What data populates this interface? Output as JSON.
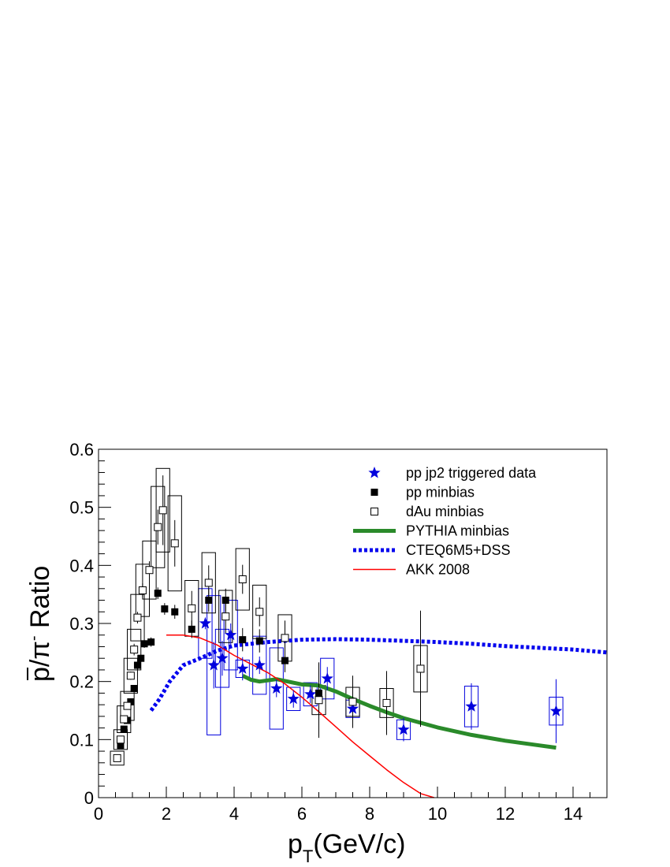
{
  "chart_data": {
    "type": "scatter",
    "xlabel": {
      "main": "p",
      "sub": "T",
      "rest": "(GeV/c)"
    },
    "ylabel": {
      "bar_char": "p",
      "slash": "/",
      "pi": "π",
      "sup": "-",
      "rest": " Ratio"
    },
    "xlim": [
      0,
      15
    ],
    "ylim": [
      0,
      0.6
    ],
    "x_ticks": [
      0,
      2,
      4,
      6,
      8,
      10,
      12,
      14
    ],
    "y_ticks": [
      0,
      0.1,
      0.2,
      0.3,
      0.4,
      0.5,
      0.6
    ],
    "x_tick_labels": [
      "0",
      "2",
      "4",
      "6",
      "8",
      "10",
      "12",
      "14"
    ],
    "y_tick_labels": [
      "0",
      "0.1",
      "0.2",
      "0.3",
      "0.4",
      "0.5",
      "0.6"
    ],
    "grid": false,
    "legend_position": "top-right",
    "legend": [
      {
        "label": "pp jp2 triggered data",
        "marker": "star",
        "color": "#0000dd"
      },
      {
        "label": "pp minbias",
        "marker": "filled-square",
        "color": "#000000"
      },
      {
        "label": "dAu minbias",
        "marker": "open-square",
        "color": "#000000"
      },
      {
        "label": "PYTHIA minbias",
        "line": "solid-thick",
        "color": "#2a8a2a"
      },
      {
        "label": "CTEQ6M5+DSS",
        "line": "dotted-thick",
        "color": "#0000ee"
      },
      {
        "label": "AKK 2008",
        "line": "solid-thin",
        "color": "#ff0000"
      }
    ],
    "series": [
      {
        "name": "pp jp2 triggered data",
        "marker": "star",
        "color": "#0000dd",
        "points": [
          {
            "x": 3.15,
            "y": 0.3,
            "err": 0.01,
            "sys": 0.06,
            "half_w": 0.2
          },
          {
            "x": 3.4,
            "y": 0.228,
            "err": 0.04,
            "sys": 0.12,
            "half_w": 0.2
          },
          {
            "x": 3.65,
            "y": 0.24,
            "err": 0.03,
            "sys": 0.05,
            "half_w": 0.2
          },
          {
            "x": 3.9,
            "y": 0.28,
            "err": 0.02,
            "sys": 0.06,
            "half_w": 0.2
          },
          {
            "x": 4.25,
            "y": 0.222,
            "err": 0.02,
            "sys": 0.015,
            "half_w": 0.2
          },
          {
            "x": 4.75,
            "y": 0.228,
            "err": 0.015,
            "sys": 0.05,
            "half_w": 0.2
          },
          {
            "x": 5.25,
            "y": 0.188,
            "err": 0.015,
            "sys": 0.07,
            "half_w": 0.2
          },
          {
            "x": 5.75,
            "y": 0.17,
            "err": 0.015,
            "sys": 0.02,
            "half_w": 0.2
          },
          {
            "x": 6.25,
            "y": 0.178,
            "err": 0.015,
            "sys": 0.02,
            "half_w": 0.2
          },
          {
            "x": 6.75,
            "y": 0.205,
            "err": 0.02,
            "sys": 0.035,
            "half_w": 0.2
          },
          {
            "x": 7.5,
            "y": 0.153,
            "err": 0.015,
            "sys": 0.015,
            "half_w": 0.2
          },
          {
            "x": 9.0,
            "y": 0.117,
            "err": 0.02,
            "sys": 0.017,
            "half_w": 0.2
          },
          {
            "x": 11.0,
            "y": 0.157,
            "err": 0.04,
            "sys": 0.035,
            "half_w": 0.2
          },
          {
            "x": 13.5,
            "y": 0.149,
            "err": 0.055,
            "sys": 0.024,
            "half_w": 0.2
          }
        ]
      },
      {
        "name": "pp minbias",
        "marker": "filled-square",
        "color": "#000000",
        "points": [
          {
            "x": 0.55,
            "y": 0.068,
            "err": 0.003
          },
          {
            "x": 0.65,
            "y": 0.09,
            "err": 0.003
          },
          {
            "x": 0.75,
            "y": 0.118,
            "err": 0.003
          },
          {
            "x": 0.85,
            "y": 0.133,
            "err": 0.004
          },
          {
            "x": 0.95,
            "y": 0.165,
            "err": 0.005
          },
          {
            "x": 1.05,
            "y": 0.188,
            "err": 0.005
          },
          {
            "x": 1.15,
            "y": 0.228,
            "err": 0.006
          },
          {
            "x": 1.25,
            "y": 0.24,
            "err": 0.006
          },
          {
            "x": 1.35,
            "y": 0.265,
            "err": 0.007
          },
          {
            "x": 1.55,
            "y": 0.268,
            "err": 0.008
          },
          {
            "x": 1.75,
            "y": 0.352,
            "err": 0.01
          },
          {
            "x": 1.95,
            "y": 0.325,
            "err": 0.01
          },
          {
            "x": 2.25,
            "y": 0.32,
            "err": 0.012
          },
          {
            "x": 2.75,
            "y": 0.29,
            "err": 0.015
          },
          {
            "x": 3.25,
            "y": 0.34,
            "err": 0.02
          },
          {
            "x": 3.75,
            "y": 0.34,
            "err": 0.02
          },
          {
            "x": 4.25,
            "y": 0.272,
            "err": 0.02
          },
          {
            "x": 4.75,
            "y": 0.27,
            "err": 0.02
          },
          {
            "x": 5.5,
            "y": 0.236,
            "err": 0.02
          },
          {
            "x": 6.5,
            "y": 0.18,
            "err": 0.02
          }
        ]
      },
      {
        "name": "dAu minbias",
        "marker": "open-square",
        "color": "#000000",
        "points": [
          {
            "x": 0.55,
            "y": 0.068,
            "err": 0.004,
            "sys": 0.012,
            "half_w": 0.2
          },
          {
            "x": 0.65,
            "y": 0.1,
            "err": 0.004,
            "sys": 0.017,
            "half_w": 0.2
          },
          {
            "x": 0.75,
            "y": 0.135,
            "err": 0.005,
            "sys": 0.023,
            "half_w": 0.2
          },
          {
            "x": 0.85,
            "y": 0.158,
            "err": 0.006,
            "sys": 0.025,
            "half_w": 0.2
          },
          {
            "x": 0.95,
            "y": 0.21,
            "err": 0.007,
            "sys": 0.03,
            "half_w": 0.2
          },
          {
            "x": 1.05,
            "y": 0.255,
            "err": 0.01,
            "sys": 0.035,
            "half_w": 0.2
          },
          {
            "x": 1.15,
            "y": 0.31,
            "err": 0.01,
            "sys": 0.04,
            "half_w": 0.2
          },
          {
            "x": 1.3,
            "y": 0.357,
            "err": 0.012,
            "sys": 0.045,
            "half_w": 0.2
          },
          {
            "x": 1.5,
            "y": 0.392,
            "err": 0.015,
            "sys": 0.05,
            "half_w": 0.2
          },
          {
            "x": 1.75,
            "y": 0.466,
            "err": 0.03,
            "sys": 0.07,
            "half_w": 0.2
          },
          {
            "x": 1.9,
            "y": 0.495,
            "err": 0.06,
            "sys": 0.072,
            "half_w": 0.2
          },
          {
            "x": 2.25,
            "y": 0.438,
            "err": 0.04,
            "sys": 0.082,
            "half_w": 0.2
          },
          {
            "x": 2.75,
            "y": 0.326,
            "err": 0.03,
            "sys": 0.048,
            "half_w": 0.2
          },
          {
            "x": 3.25,
            "y": 0.37,
            "err": 0.03,
            "sys": 0.052,
            "half_w": 0.2
          },
          {
            "x": 3.75,
            "y": 0.312,
            "err": 0.03,
            "sys": 0.045,
            "half_w": 0.2
          },
          {
            "x": 4.25,
            "y": 0.376,
            "err": 0.025,
            "sys": 0.053,
            "half_w": 0.2
          },
          {
            "x": 4.75,
            "y": 0.32,
            "err": 0.025,
            "sys": 0.046,
            "half_w": 0.2
          },
          {
            "x": 5.5,
            "y": 0.275,
            "err": 0.03,
            "sys": 0.04,
            "half_w": 0.2
          },
          {
            "x": 6.5,
            "y": 0.168,
            "err": 0.065,
            "sys": 0.025,
            "half_w": 0.2
          },
          {
            "x": 7.5,
            "y": 0.165,
            "err": 0.045,
            "sys": 0.025,
            "half_w": 0.2
          },
          {
            "x": 8.5,
            "y": 0.163,
            "err": 0.055,
            "sys": 0.025,
            "half_w": 0.2
          },
          {
            "x": 9.5,
            "y": 0.222,
            "err": 0.1,
            "sys": 0.04,
            "half_w": 0.2
          }
        ]
      },
      {
        "name": "PYTHIA minbias",
        "line": "solid-thick",
        "color": "#2a8a2a",
        "curve": [
          [
            4.25,
            0.21
          ],
          [
            4.5,
            0.203
          ],
          [
            4.75,
            0.2
          ],
          [
            5.0,
            0.202
          ],
          [
            5.25,
            0.204
          ],
          [
            5.5,
            0.201
          ],
          [
            6.0,
            0.195
          ],
          [
            6.5,
            0.193
          ],
          [
            7.0,
            0.183
          ],
          [
            7.5,
            0.17
          ],
          [
            8.0,
            0.158
          ],
          [
            8.5,
            0.147
          ],
          [
            9.0,
            0.137
          ],
          [
            10.0,
            0.121
          ],
          [
            11.0,
            0.108
          ],
          [
            12.0,
            0.098
          ],
          [
            13.0,
            0.09
          ],
          [
            13.5,
            0.086
          ]
        ]
      },
      {
        "name": "CTEQ6M5+DSS",
        "line": "dotted-thick",
        "color": "#0000ee",
        "curve": [
          [
            1.55,
            0.15
          ],
          [
            1.8,
            0.17
          ],
          [
            2.1,
            0.2
          ],
          [
            2.5,
            0.228
          ],
          [
            3.0,
            0.24
          ],
          [
            3.5,
            0.253
          ],
          [
            4.0,
            0.262
          ],
          [
            5.0,
            0.268
          ],
          [
            6.0,
            0.272
          ],
          [
            7.0,
            0.273
          ],
          [
            8.0,
            0.272
          ],
          [
            9.0,
            0.27
          ],
          [
            10.0,
            0.268
          ],
          [
            11.0,
            0.265
          ],
          [
            12.0,
            0.261
          ],
          [
            13.0,
            0.258
          ],
          [
            14.0,
            0.255
          ],
          [
            15.0,
            0.25
          ]
        ]
      },
      {
        "name": "AKK 2008",
        "line": "solid-thin",
        "color": "#ff0000",
        "curve": [
          [
            2.0,
            0.28
          ],
          [
            2.5,
            0.28
          ],
          [
            3.0,
            0.275
          ],
          [
            3.5,
            0.263
          ],
          [
            4.0,
            0.245
          ],
          [
            4.5,
            0.23
          ],
          [
            5.0,
            0.215
          ],
          [
            5.5,
            0.196
          ],
          [
            6.0,
            0.173
          ],
          [
            6.5,
            0.148
          ],
          [
            7.0,
            0.122
          ],
          [
            7.5,
            0.096
          ],
          [
            8.0,
            0.072
          ],
          [
            8.5,
            0.048
          ],
          [
            9.0,
            0.026
          ],
          [
            9.5,
            0.007
          ],
          [
            9.9,
            0.0
          ]
        ]
      }
    ]
  }
}
